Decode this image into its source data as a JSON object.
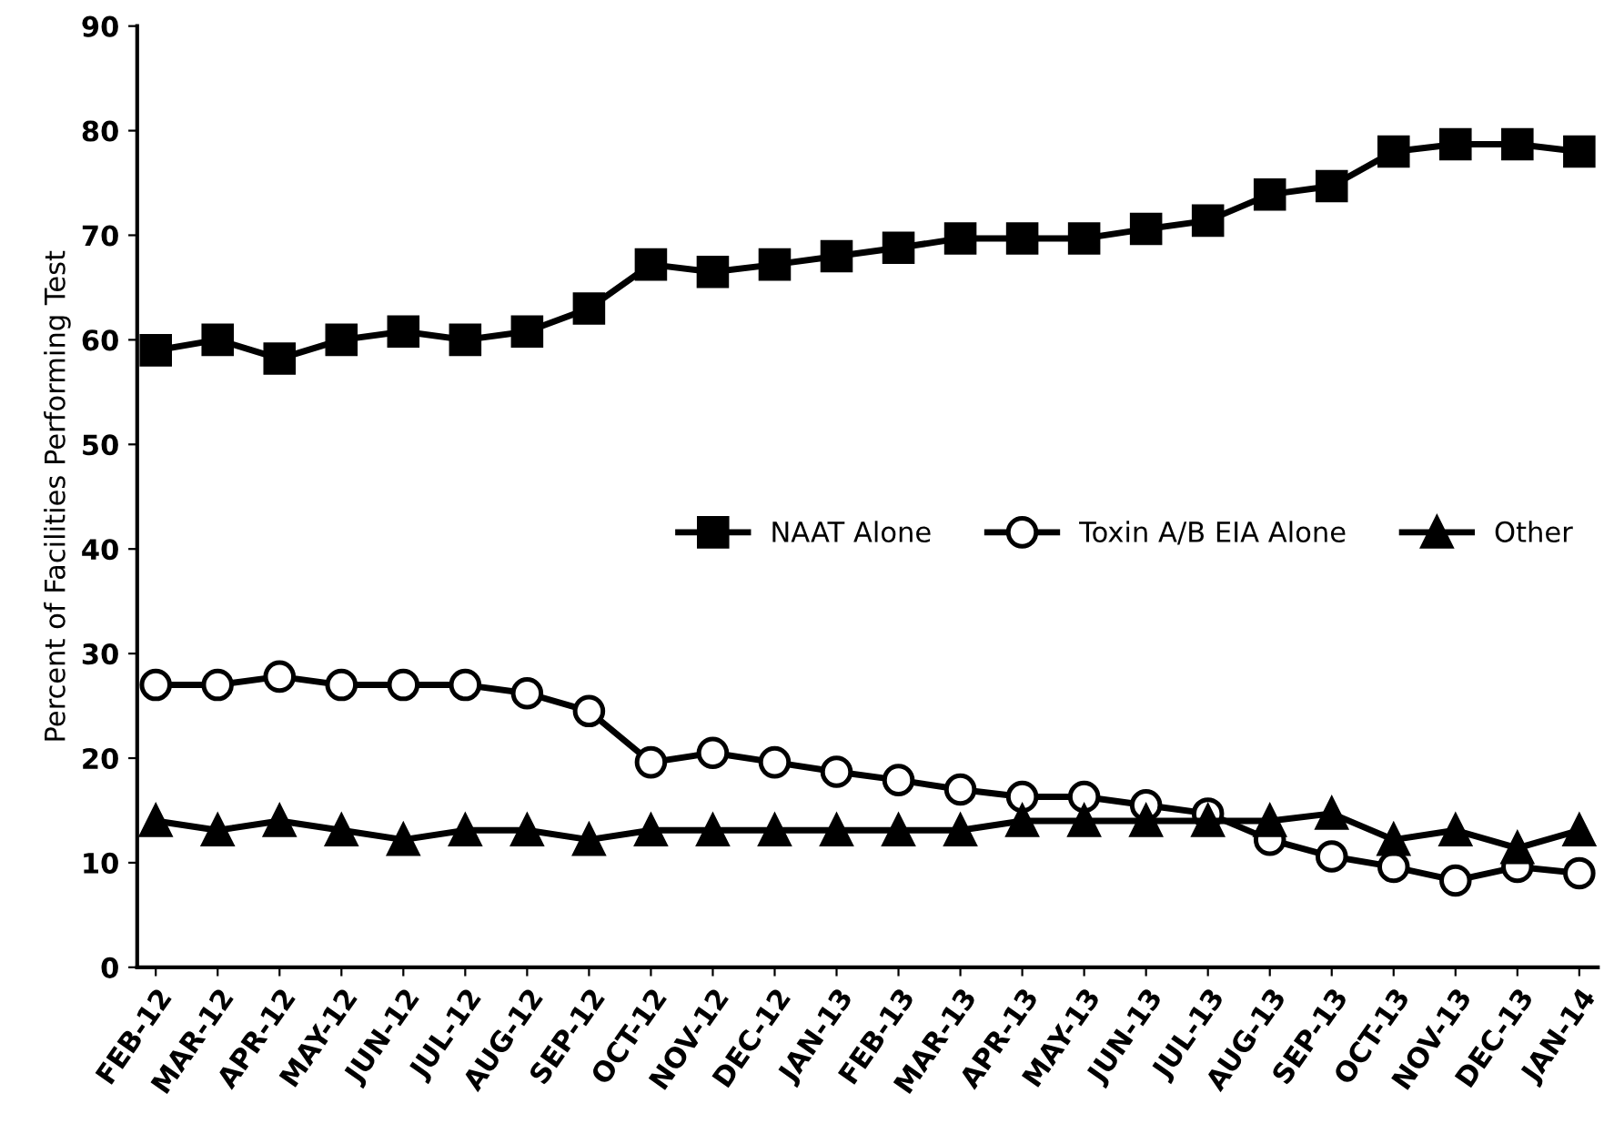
{
  "chart_data": {
    "type": "line",
    "ylabel": "Percent of Facilities Performing Test",
    "categories": [
      "FEB-12",
      "MAR-12",
      "APR-12",
      "MAY-12",
      "JUN-12",
      "JUL-12",
      "AUG-12",
      "SEP-12",
      "OCT-12",
      "NOV-12",
      "DEC-12",
      "JAN-13",
      "FEB-13",
      "MAR-13",
      "APR-13",
      "MAY-13",
      "JUN-13",
      "JUL-13",
      "AUG-13",
      "SEP-13",
      "OCT-13",
      "NOV-13",
      "DEC-13",
      "JAN-14"
    ],
    "series": [
      {
        "name": "NAAT Alone",
        "color": "#000000",
        "marker": "square",
        "values": [
          59,
          60,
          58.2,
          60,
          60.8,
          60,
          60.8,
          63,
          67.2,
          66.5,
          67.2,
          68,
          68.8,
          69.7,
          69.7,
          69.7,
          70.6,
          71.4,
          73.9,
          74.7,
          78,
          78.7,
          78.7,
          78
        ]
      },
      {
        "name": "Toxin A/B EIA Alone",
        "color": "#000000",
        "marker": "circle",
        "values": [
          27,
          27,
          27.8,
          27,
          27,
          27,
          26.2,
          24.5,
          19.6,
          20.5,
          19.6,
          18.7,
          17.9,
          17,
          16.3,
          16.3,
          15.5,
          14.7,
          12.2,
          10.6,
          9.6,
          8.3,
          9.6,
          9
        ]
      },
      {
        "name": "Other",
        "color": "#000000",
        "marker": "triangle",
        "values": [
          14,
          13.1,
          14,
          13.1,
          12.2,
          13.1,
          13.1,
          12.2,
          13.1,
          13.1,
          13.1,
          13.1,
          13.1,
          13.1,
          14,
          14,
          14,
          14,
          14,
          14.7,
          12.2,
          13.1,
          11.4,
          13.1
        ]
      }
    ],
    "ylim": [
      0,
      90
    ],
    "yticks": [
      0,
      10,
      20,
      30,
      40,
      50,
      60,
      70,
      80,
      90
    ],
    "grid": false,
    "legend": "right",
    "line_style": "solid"
  }
}
